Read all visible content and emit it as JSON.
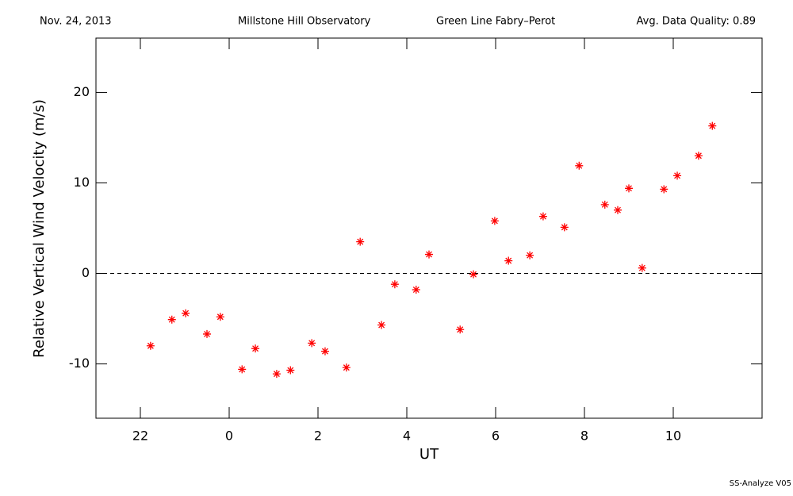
{
  "chart_data": {
    "type": "scatter",
    "header": [
      "Nov. 24, 2013",
      "Millstone Hill Observatory",
      "Green Line Fabry–Perot",
      "Avg. Data Quality: 0.89"
    ],
    "footer": "SS-Analyze V05",
    "xlabel": "UT",
    "ylabel": "Relative Vertical Wind Velocity (m/s)",
    "xlim": [
      -3,
      12
    ],
    "xticks": [
      {
        "value": -2,
        "label": "22"
      },
      0,
      2,
      4,
      6,
      8,
      10
    ],
    "ylim": [
      -16,
      26
    ],
    "yticks": [
      -10,
      0,
      10,
      20
    ],
    "hline": 0,
    "series": [
      {
        "color": "#ff0000",
        "x": [
          -1.77,
          -1.29,
          -0.98,
          -0.5,
          -0.2,
          0.29,
          0.59,
          1.07,
          1.38,
          1.86,
          2.16,
          2.64,
          2.95,
          3.43,
          3.73,
          4.21,
          4.5,
          5.2,
          5.5,
          5.98,
          6.29,
          6.77,
          7.07,
          7.55,
          7.88,
          8.46,
          8.75,
          9.0,
          9.3,
          9.79,
          10.09,
          10.57,
          10.88
        ],
        "values": [
          -8.0,
          -5.1,
          -4.4,
          -6.7,
          -4.8,
          -10.6,
          -8.3,
          -11.1,
          -10.7,
          -7.7,
          -8.6,
          -10.4,
          3.5,
          -5.7,
          -1.2,
          -1.8,
          2.1,
          -6.2,
          -0.1,
          5.8,
          1.4,
          2.0,
          6.3,
          5.1,
          11.9,
          7.6,
          7.0,
          9.4,
          0.6,
          9.3,
          10.8,
          13.0,
          16.3
        ]
      }
    ]
  }
}
